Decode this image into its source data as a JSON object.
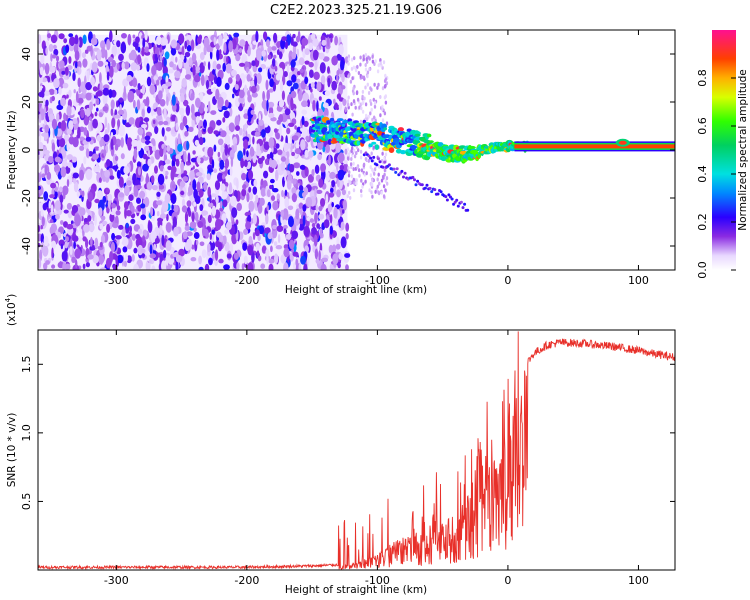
{
  "title": "C2E2.2023.325.21.19.G06",
  "chart_data": [
    {
      "type": "heatmap",
      "name": "spectrogram",
      "xlabel": "Height of straight line (km)",
      "ylabel": "Frequency (Hz)",
      "xlim": [
        -360,
        128
      ],
      "ylim": [
        -50,
        50
      ],
      "xticks": [
        -300,
        -200,
        -100,
        0,
        100
      ],
      "xtick_labels": [
        "-300",
        "-200",
        "-100",
        "0",
        "100"
      ],
      "yticks": [
        -40,
        -20,
        0,
        20,
        40
      ],
      "ytick_labels": [
        "-40",
        "-20",
        "0",
        "20",
        "40"
      ],
      "noise_region": {
        "x_start": -360,
        "x_end": -123,
        "freq_min": -50,
        "freq_max": 48
      },
      "signal_trace": {
        "x": [
          -150,
          -130,
          -110,
          -100,
          -90,
          -80,
          -70,
          -60,
          -50,
          -40,
          -30,
          -20,
          -10,
          0,
          10,
          20,
          40,
          60,
          80,
          100,
          128
        ],
        "freq": [
          9,
          8,
          7,
          6,
          5,
          4,
          2.5,
          1,
          -1,
          -2,
          -1.5,
          0,
          1,
          1.5,
          1.5,
          1.5,
          1.5,
          1.5,
          1.5,
          1.5,
          1.5
        ]
      },
      "colorbar": {
        "label": "Normalized spectral amplitude",
        "range": [
          0,
          1
        ],
        "ticks": [
          0.0,
          0.2,
          0.4,
          0.6,
          0.8
        ],
        "tick_labels": [
          "0.0",
          "0.2",
          "0.4",
          "0.6",
          "0.8"
        ]
      }
    },
    {
      "type": "line",
      "name": "snr",
      "xlabel": "Height of straight line (km)",
      "ylabel": "SNR (10 * v/v)",
      "y_multiplier": "(x10",
      "y_multiplier_exp": "4",
      "y_multiplier_close": ")",
      "xlim": [
        -360,
        128
      ],
      "ylim": [
        0,
        1.75
      ],
      "xticks": [
        -300,
        -200,
        -100,
        0,
        100
      ],
      "xtick_labels": [
        "-300",
        "-200",
        "-100",
        "0",
        "100"
      ],
      "yticks": [
        0.5,
        1.0,
        1.5
      ],
      "ytick_labels": [
        "0.5",
        "1.0",
        "1.5"
      ],
      "series": [
        {
          "name": "SNR",
          "color": "#e8302a",
          "x": [
            -360,
            -300,
            -200,
            -150,
            -125,
            -110,
            -100,
            -90,
            -80,
            -70,
            -60,
            -50,
            -40,
            -30,
            -25,
            -20,
            -15,
            -10,
            -5,
            0,
            5,
            10,
            20,
            30,
            40,
            60,
            80,
            100,
            110,
            128
          ],
          "y": [
            0.02,
            0.02,
            0.02,
            0.03,
            0.04,
            0.08,
            0.12,
            0.2,
            0.22,
            0.28,
            0.3,
            0.35,
            0.4,
            0.55,
            0.85,
            0.9,
            0.95,
            1.0,
            1.05,
            1.2,
            1.35,
            1.45,
            1.58,
            1.64,
            1.66,
            1.65,
            1.63,
            1.6,
            1.58,
            1.55
          ]
        }
      ]
    }
  ]
}
